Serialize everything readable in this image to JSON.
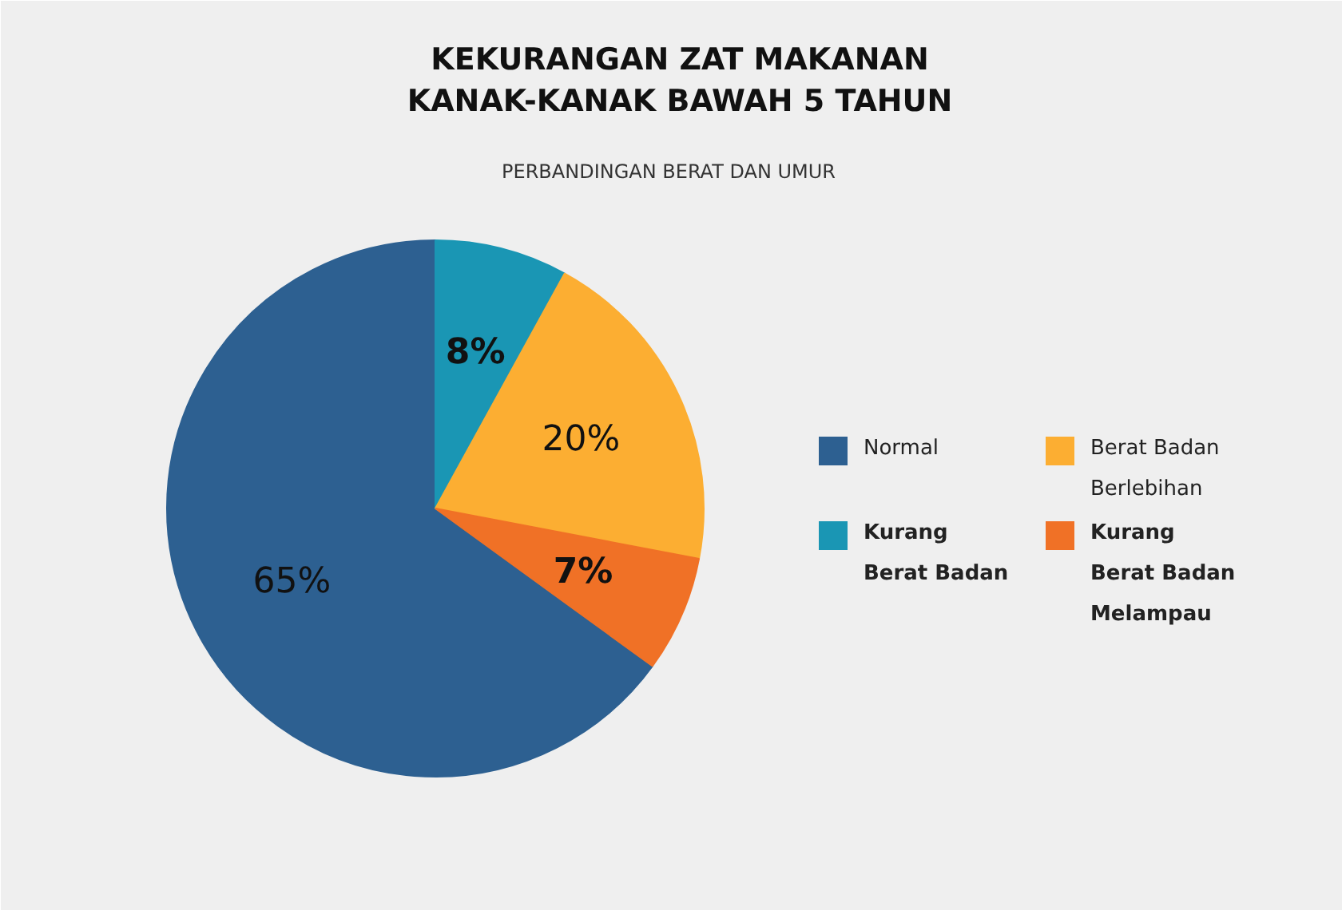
{
  "chart_data": {
    "type": "pie",
    "title": "KEKURANGAN ZAT MAKANAN KANAK-KANAK BAWAH 5 TAHUN",
    "subtitle": "PERBANDINGAN BERAT DAN UMUR",
    "categories": [
      "Normal",
      "Kurang Berat Badan",
      "Berat Badan Berlebihan",
      "Kurang Berat Badan Melampau"
    ],
    "values": [
      65,
      8,
      20,
      7
    ],
    "colors": [
      "#2d6091",
      "#1a96b4",
      "#fcae32",
      "#f07126"
    ],
    "value_labels": [
      "65%",
      "8%",
      "20%",
      "7%"
    ],
    "legend": "right"
  }
}
